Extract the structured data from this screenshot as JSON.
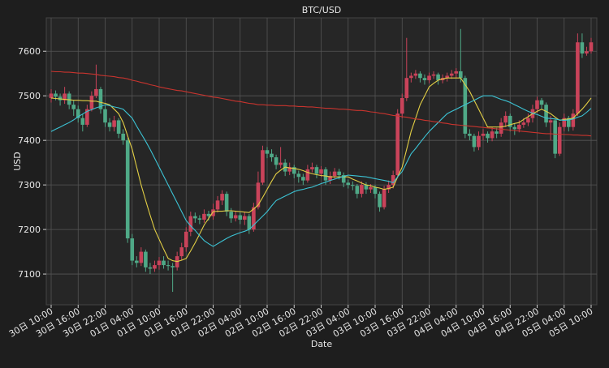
{
  "chart_data": {
    "type": "candlestick",
    "title": "BTC/USD",
    "x_label": "Date",
    "y_label": "USD",
    "categories": [
      "30日 10:00",
      null,
      null,
      null,
      null,
      null,
      "30日 16:00",
      null,
      null,
      null,
      null,
      null,
      "30日 22:00",
      null,
      null,
      null,
      null,
      null,
      "01日 04:00",
      null,
      null,
      null,
      null,
      null,
      "01日 10:00",
      null,
      null,
      null,
      null,
      null,
      "01日 16:00",
      null,
      null,
      null,
      null,
      null,
      "01日 22:00",
      null,
      null,
      null,
      null,
      null,
      "02日 04:00",
      null,
      null,
      null,
      null,
      null,
      "02日 10:00",
      null,
      null,
      null,
      null,
      null,
      "02日 16:00",
      null,
      null,
      null,
      null,
      null,
      "02日 22:00",
      null,
      null,
      null,
      null,
      null,
      "03日 04:00",
      null,
      null,
      null,
      null,
      null,
      "03日 10:00",
      null,
      null,
      null,
      null,
      null,
      "03日 16:00",
      null,
      null,
      null,
      null,
      null,
      "03日 22:00",
      null,
      null,
      null,
      null,
      null,
      "04日 04:00",
      null,
      null,
      null,
      null,
      null,
      "04日 10:00",
      null,
      null,
      null,
      null,
      null,
      "04日 16:00",
      null,
      null,
      null,
      null,
      null,
      "04日 22:00",
      null,
      null,
      null,
      null,
      null,
      "05日 04:00",
      null,
      null,
      null,
      null,
      null,
      "05日 10:00"
    ],
    "open": [
      7495,
      7505,
      7498,
      7490,
      7505,
      7480,
      7470,
      7450,
      7435,
      7470,
      7500,
      7515,
      7470,
      7440,
      7430,
      7445,
      7415,
      7400,
      7180,
      7130,
      7125,
      7150,
      7115,
      7112,
      7120,
      7130,
      7120,
      7118,
      7115,
      7140,
      7160,
      7195,
      7230,
      7225,
      7222,
      7235,
      7230,
      7245,
      7265,
      7280,
      7240,
      7225,
      7232,
      7222,
      7230,
      7200,
      7250,
      7305,
      7378,
      7370,
      7362,
      7345,
      7350,
      7330,
      7340,
      7325,
      7318,
      7310,
      7335,
      7340,
      7325,
      7335,
      7310,
      7320,
      7330,
      7322,
      7305,
      7300,
      7298,
      7280,
      7300,
      7290,
      7295,
      7280,
      7250,
      7290,
      7300,
      7322,
      7460,
      7495,
      7540,
      7545,
      7550,
      7540,
      7535,
      7545,
      7548,
      7535,
      7540,
      7545,
      7550,
      7555,
      7540,
      7415,
      7410,
      7385,
      7410,
      7415,
      7405,
      7420,
      7415,
      7440,
      7455,
      7430,
      7425,
      7435,
      7440,
      7450,
      7470,
      7490,
      7480,
      7440,
      7445,
      7370,
      7430,
      7450,
      7430,
      7460,
      7620,
      7595,
      7600
    ],
    "high": [
      7515,
      7512,
      7505,
      7520,
      7510,
      7490,
      7478,
      7460,
      7480,
      7510,
      7570,
      7520,
      7478,
      7450,
      7455,
      7450,
      7425,
      7405,
      7190,
      7140,
      7160,
      7155,
      7125,
      7130,
      7138,
      7140,
      7130,
      7125,
      7150,
      7170,
      7205,
      7240,
      7238,
      7232,
      7245,
      7242,
      7258,
      7275,
      7288,
      7285,
      7248,
      7240,
      7238,
      7240,
      7235,
      7260,
      7330,
      7388,
      7385,
      7380,
      7368,
      7385,
      7358,
      7350,
      7345,
      7332,
      7325,
      7345,
      7350,
      7345,
      7342,
      7340,
      7330,
      7338,
      7336,
      7328,
      7312,
      7308,
      7302,
      7308,
      7306,
      7302,
      7300,
      7285,
      7298,
      7310,
      7332,
      7470,
      7505,
      7630,
      7552,
      7558,
      7555,
      7548,
      7552,
      7555,
      7552,
      7548,
      7552,
      7558,
      7562,
      7650,
      7545,
      7425,
      7415,
      7420,
      7425,
      7420,
      7430,
      7428,
      7450,
      7465,
      7460,
      7438,
      7445,
      7450,
      7460,
      7480,
      7498,
      7495,
      7485,
      7455,
      7450,
      7440,
      7460,
      7455,
      7470,
      7640,
      7640,
      7610,
      7630
    ],
    "low": [
      7485,
      7490,
      7478,
      7482,
      7470,
      7455,
      7440,
      7420,
      7430,
      7465,
      7495,
      7460,
      7430,
      7420,
      7420,
      7405,
      7390,
      7170,
      7120,
      7115,
      7118,
      7105,
      7100,
      7105,
      7110,
      7112,
      7108,
      7060,
      7108,
      7130,
      7150,
      7185,
      7215,
      7212,
      7215,
      7220,
      7222,
      7238,
      7255,
      7230,
      7215,
      7218,
      7212,
      7210,
      7190,
      7195,
      7245,
      7300,
      7360,
      7352,
      7335,
      7338,
      7320,
      7322,
      7315,
      7305,
      7300,
      7305,
      7328,
      7315,
      7318,
      7300,
      7302,
      7312,
      7312,
      7295,
      7292,
      7288,
      7270,
      7272,
      7280,
      7282,
      7270,
      7240,
      7245,
      7282,
      7292,
      7315,
      7450,
      7488,
      7530,
      7538,
      7530,
      7525,
      7528,
      7538,
      7525,
      7528,
      7532,
      7538,
      7540,
      7530,
      7405,
      7400,
      7375,
      7378,
      7400,
      7395,
      7398,
      7405,
      7408,
      7430,
      7420,
      7412,
      7418,
      7428,
      7432,
      7440,
      7462,
      7470,
      7430,
      7400,
      7360,
      7365,
      7420,
      7420,
      7422,
      7455,
      7585,
      7590,
      7595
    ],
    "close": [
      7505,
      7498,
      7490,
      7505,
      7480,
      7470,
      7450,
      7435,
      7470,
      7500,
      7515,
      7470,
      7440,
      7430,
      7445,
      7415,
      7400,
      7180,
      7130,
      7125,
      7150,
      7115,
      7112,
      7120,
      7130,
      7120,
      7118,
      7115,
      7140,
      7160,
      7195,
      7230,
      7225,
      7222,
      7235,
      7230,
      7245,
      7265,
      7280,
      7240,
      7225,
      7232,
      7222,
      7230,
      7200,
      7250,
      7305,
      7378,
      7370,
      7362,
      7345,
      7350,
      7330,
      7340,
      7325,
      7318,
      7310,
      7335,
      7340,
      7325,
      7335,
      7310,
      7320,
      7330,
      7322,
      7305,
      7300,
      7298,
      7280,
      7300,
      7290,
      7295,
      7280,
      7250,
      7290,
      7300,
      7322,
      7460,
      7495,
      7540,
      7545,
      7550,
      7540,
      7535,
      7545,
      7548,
      7535,
      7540,
      7545,
      7550,
      7555,
      7540,
      7415,
      7410,
      7385,
      7410,
      7415,
      7405,
      7420,
      7415,
      7440,
      7455,
      7430,
      7425,
      7435,
      7440,
      7450,
      7470,
      7490,
      7480,
      7440,
      7445,
      7370,
      7430,
      7450,
      7430,
      7460,
      7620,
      7595,
      7600,
      7620
    ],
    "up_color": "#c9435a",
    "down_color": "#4fa987",
    "lines": [
      {
        "color": "#e3cf45",
        "values": [
          7495,
          7494,
          7493,
          7492,
          7491,
          7490,
          7490,
          7489,
          7489,
          7488,
          7488,
          7485,
          7483,
          7480,
          7470,
          7460,
          7440,
          7410,
          7380,
          7340,
          7300,
          7265,
          7232,
          7200,
          7178,
          7156,
          7135,
          7130,
          7128,
          7131,
          7135,
          7152,
          7170,
          7190,
          7210,
          7225,
          7240,
          7241,
          7241,
          7242,
          7242,
          7241,
          7240,
          7239,
          7238,
          7246,
          7255,
          7272,
          7290,
          7308,
          7325,
          7333,
          7340,
          7338,
          7337,
          7335,
          7332,
          7328,
          7325,
          7323,
          7321,
          7320,
          7318,
          7318,
          7318,
          7318,
          7318,
          7313,
          7309,
          7304,
          7300,
          7298,
          7295,
          7293,
          7290,
          7292,
          7295,
          7318,
          7340,
          7380,
          7420,
          7450,
          7480,
          7500,
          7520,
          7528,
          7535,
          7538,
          7540,
          7540,
          7540,
          7540,
          7525,
          7510,
          7490,
          7470,
          7450,
          7430,
          7430,
          7430,
          7430,
          7432,
          7435,
          7438,
          7440,
          7447,
          7453,
          7460,
          7465,
          7470,
          7465,
          7460,
          7452,
          7445,
          7447,
          7448,
          7450,
          7460,
          7470,
          7482,
          7495
        ]
      },
      {
        "color": "#3cc3d4",
        "values": [
          7420,
          7425,
          7430,
          7435,
          7440,
          7446,
          7453,
          7459,
          7465,
          7469,
          7473,
          7476,
          7480,
          7478,
          7475,
          7473,
          7470,
          7460,
          7450,
          7432,
          7415,
          7398,
          7380,
          7360,
          7340,
          7320,
          7300,
          7280,
          7260,
          7240,
          7220,
          7208,
          7198,
          7186,
          7175,
          7168,
          7162,
          7168,
          7174,
          7180,
          7185,
          7189,
          7193,
          7196,
          7200,
          7210,
          7220,
          7230,
          7240,
          7253,
          7265,
          7270,
          7275,
          7280,
          7285,
          7288,
          7290,
          7293,
          7295,
          7299,
          7303,
          7306,
          7310,
          7313,
          7316,
          7319,
          7322,
          7321,
          7320,
          7319,
          7318,
          7316,
          7314,
          7312,
          7310,
          7308,
          7305,
          7318,
          7330,
          7350,
          7370,
          7382,
          7395,
          7408,
          7420,
          7430,
          7440,
          7450,
          7460,
          7465,
          7470,
          7475,
          7480,
          7485,
          7490,
          7495,
          7500,
          7500,
          7500,
          7496,
          7492,
          7489,
          7485,
          7480,
          7475,
          7470,
          7465,
          7461,
          7458,
          7454,
          7450,
          7449,
          7448,
          7446,
          7445,
          7446,
          7448,
          7452,
          7455,
          7463,
          7472
        ]
      },
      {
        "color": "#c8342e",
        "values": [
          7555,
          7554,
          7554,
          7553,
          7553,
          7552,
          7551,
          7551,
          7550,
          7549,
          7548,
          7546,
          7545,
          7544,
          7543,
          7541,
          7540,
          7538,
          7535,
          7533,
          7530,
          7528,
          7525,
          7523,
          7520,
          7518,
          7516,
          7514,
          7512,
          7511,
          7509,
          7507,
          7505,
          7503,
          7501,
          7499,
          7497,
          7496,
          7494,
          7492,
          7490,
          7488,
          7487,
          7485,
          7483,
          7482,
          7480,
          7480,
          7479,
          7479,
          7478,
          7478,
          7478,
          7477,
          7477,
          7476,
          7476,
          7475,
          7475,
          7474,
          7473,
          7472,
          7472,
          7471,
          7470,
          7470,
          7469,
          7468,
          7467,
          7467,
          7466,
          7464,
          7463,
          7461,
          7460,
          7458,
          7456,
          7455,
          7453,
          7452,
          7450,
          7448,
          7447,
          7445,
          7444,
          7442,
          7441,
          7439,
          7438,
          7436,
          7435,
          7434,
          7433,
          7432,
          7431,
          7430,
          7429,
          7428,
          7427,
          7426,
          7425,
          7424,
          7423,
          7422,
          7421,
          7420,
          7419,
          7418,
          7417,
          7416,
          7415,
          7415,
          7414,
          7414,
          7413,
          7413,
          7412,
          7412,
          7411,
          7411,
          7410
        ]
      }
    ],
    "ylim": [
      7031,
      7675
    ],
    "yticks": [
      7100,
      7200,
      7300,
      7400,
      7500,
      7600
    ],
    "grid": true
  }
}
